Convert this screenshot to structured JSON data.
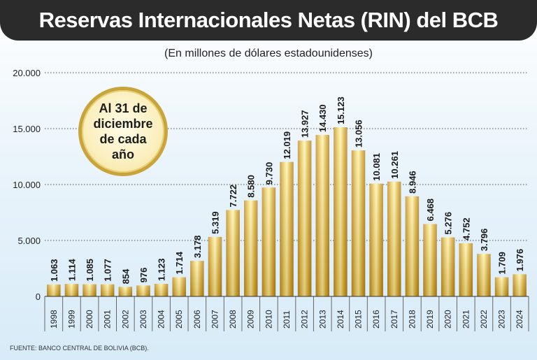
{
  "header": {
    "title": "Reservas Internacionales Netas (RIN) del BCB"
  },
  "subtitle": "(En millones de dólares estadounidenses)",
  "badge": {
    "text": "Al 31 de diciembre de cada año"
  },
  "source": "FUENTE: BANCO CENTRAL DE BOLIVIA (BCB).",
  "colors": {
    "bar_light": "#fff3b0",
    "bar_mid": "#e2b93b",
    "bar_dark": "#b8861c",
    "title_bg": "#2b2b2b"
  },
  "chart_data": {
    "type": "bar",
    "title": "Reservas Internacionales Netas (RIN) del BCB",
    "subtitle": "(En millones de dólares estadounidenses)",
    "xlabel": "",
    "ylabel": "",
    "ylim": [
      0,
      20000
    ],
    "yticks": [
      0,
      5000,
      10000,
      15000,
      20000
    ],
    "ytick_labels": [
      "0",
      "5.000",
      "10.000",
      "15.000",
      "20.000"
    ],
    "grid": "horizontal dotted",
    "categories": [
      "1998",
      "1999",
      "2000",
      "2001",
      "2002",
      "2003",
      "2004",
      "2005",
      "2006",
      "2007",
      "2008",
      "2009",
      "2010",
      "2011",
      "2012",
      "2013",
      "2014",
      "2015",
      "2016",
      "2017",
      "2018",
      "2019",
      "2020",
      "2021",
      "2022",
      "2023",
      "2024"
    ],
    "values": [
      1063,
      1114,
      1085,
      1077,
      854,
      976,
      1123,
      1714,
      3178,
      5319,
      7722,
      8580,
      9730,
      12019,
      13927,
      14430,
      15123,
      13056,
      10081,
      10261,
      8946,
      6468,
      5276,
      4752,
      3796,
      1709,
      1976
    ],
    "value_labels": [
      "1.063",
      "1.114",
      "1.085",
      "1.077",
      "854",
      "976",
      "1.123",
      "1.714",
      "3.178",
      "5.319",
      "7.722",
      "8.580",
      "9.730",
      "12.019",
      "13.927",
      "14.430",
      "15.123",
      "13.056",
      "10.081",
      "10.261",
      "8.946",
      "6.468",
      "5.276",
      "4.752",
      "3.796",
      "1.709",
      "1.976"
    ]
  }
}
